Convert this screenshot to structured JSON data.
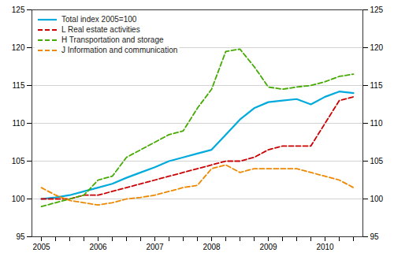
{
  "chart_data": {
    "type": "line",
    "categories": [
      "2005",
      null,
      null,
      null,
      "2006",
      null,
      null,
      null,
      "2007",
      null,
      null,
      null,
      "2008",
      null,
      null,
      null,
      "2009",
      null,
      null,
      null,
      "2010",
      null,
      null
    ],
    "series": [
      {
        "name": "Total index 2005=100",
        "color": "#00aadd",
        "line_style": "solid",
        "values": [
          100.0,
          100.2,
          100.5,
          101.0,
          101.5,
          102.0,
          102.8,
          103.5,
          104.2,
          105.0,
          105.5,
          106.0,
          106.5,
          108.5,
          110.5,
          112.0,
          112.8,
          113.0,
          113.2,
          112.5,
          113.5,
          114.2,
          114.0
        ]
      },
      {
        "name": "L Real estate activities",
        "color": "#cc0000",
        "line_style": "dashed",
        "values": [
          100.0,
          100.0,
          100.0,
          100.5,
          100.5,
          101.0,
          101.5,
          102.0,
          102.5,
          103.0,
          103.5,
          104.0,
          104.5,
          105.0,
          105.0,
          105.5,
          106.5,
          107.0,
          107.0,
          107.0,
          110.0,
          113.0,
          113.5
        ]
      },
      {
        "name": "H Transportation and storage",
        "color": "#44aa00",
        "line_style": "dashed",
        "values": [
          99.0,
          99.5,
          100.0,
          100.5,
          102.5,
          103.0,
          105.5,
          106.5,
          107.5,
          108.5,
          109.0,
          112.0,
          114.5,
          119.5,
          119.8,
          117.5,
          114.8,
          114.5,
          114.8,
          115.0,
          115.5,
          116.2,
          116.5
        ]
      },
      {
        "name": "J Information and communication",
        "color": "#ee8800",
        "line_style": "dashed",
        "values": [
          101.5,
          100.5,
          99.8,
          99.5,
          99.2,
          99.5,
          100.0,
          100.2,
          100.5,
          101.0,
          101.5,
          101.8,
          104.0,
          104.5,
          103.5,
          104.0,
          104.0,
          104.0,
          104.0,
          103.5,
          103.0,
          102.5,
          101.5
        ]
      }
    ],
    "ylim": [
      95,
      125
    ],
    "yticks": [
      95,
      100,
      105,
      110,
      115,
      120,
      125
    ],
    "y2lim": [
      95,
      125
    ],
    "y2ticks": [
      95,
      100,
      105,
      110,
      115,
      120,
      125
    ],
    "grid": true,
    "legend": "upper left"
  }
}
